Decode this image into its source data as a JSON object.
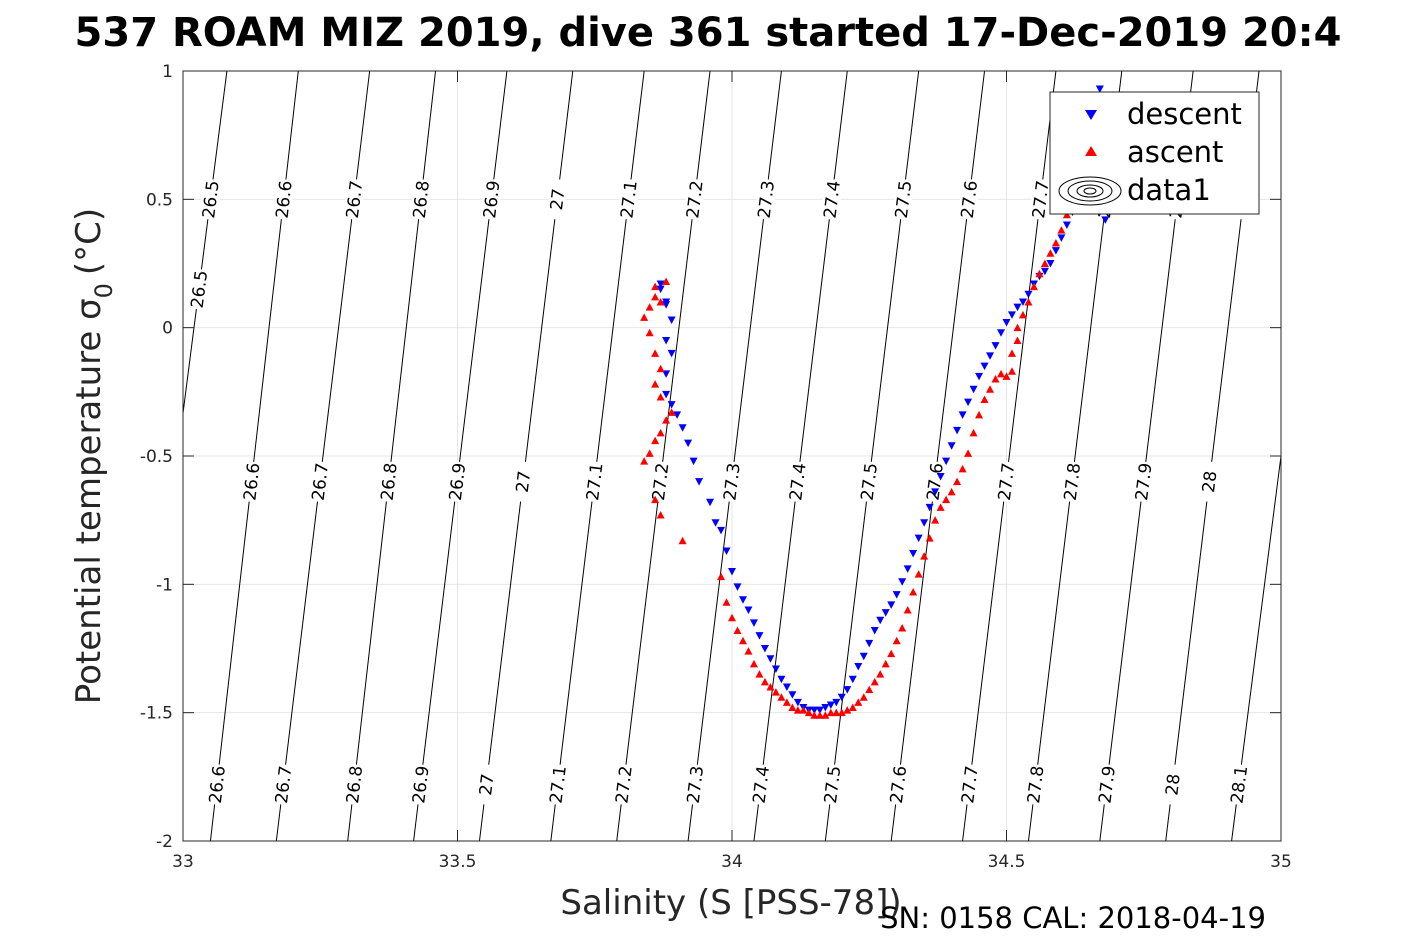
{
  "chart_data": {
    "type": "scatter",
    "title": "537 ROAM MIZ 2019, dive 361 started 17-Dec-2019 20:4",
    "xlabel": "Salinity (S [PSS-78])",
    "ylabel": "Potential temperature σ",
    "ylabel_sub": "0",
    "ylabel_unit": "(°C)",
    "caption": "SN: 0158  CAL: 2018-04-19",
    "xlim": [
      33,
      35
    ],
    "ylim": [
      -2,
      1
    ],
    "x_ticks": [
      33,
      33.5,
      34,
      34.5,
      35
    ],
    "x_tick_labels": [
      "33",
      "33.5",
      "34",
      "34.5",
      "35"
    ],
    "y_ticks": [
      1,
      0.5,
      0,
      -0.5,
      -1,
      -1.5,
      -2
    ],
    "y_tick_labels": [
      "1",
      "0.5",
      "0",
      "-0.5",
      "-1",
      "-1.5",
      "-2"
    ],
    "grid": true,
    "legend": {
      "placement": "top-right",
      "entries": [
        "descent",
        "ascent",
        "data1"
      ],
      "colors": [
        "#0000ff",
        "#ff0000",
        "#000000"
      ]
    },
    "contours": {
      "levels": [
        "26.5",
        "26.6",
        "26.7",
        "26.8",
        "26.9",
        "27",
        "27.1",
        "27.2",
        "27.3",
        "27.4",
        "27.5",
        "27.6",
        "27.7",
        "27.8",
        "27.9",
        "28",
        "28.1"
      ],
      "lines": [
        {
          "level": "26.5",
          "bottom_s": 32.9,
          "top_s": 33.08
        },
        {
          "level": "26.6",
          "bottom_s": 33.05,
          "top_s": 33.21
        },
        {
          "level": "26.7",
          "bottom_s": 33.17,
          "top_s": 33.34
        },
        {
          "level": "26.8",
          "bottom_s": 33.3,
          "top_s": 33.46
        },
        {
          "level": "26.9",
          "bottom_s": 33.42,
          "top_s": 33.59
        },
        {
          "level": "27",
          "bottom_s": 33.54,
          "top_s": 33.71
        },
        {
          "level": "27.1",
          "bottom_s": 33.67,
          "top_s": 33.84
        },
        {
          "level": "27.2",
          "bottom_s": 33.79,
          "top_s": 33.96
        },
        {
          "level": "27.3",
          "bottom_s": 33.92,
          "top_s": 34.09
        },
        {
          "level": "27.4",
          "bottom_s": 34.04,
          "top_s": 34.21
        },
        {
          "level": "27.5",
          "bottom_s": 34.17,
          "top_s": 34.34
        },
        {
          "level": "27.6",
          "bottom_s": 34.29,
          "top_s": 34.46
        },
        {
          "level": "27.7",
          "bottom_s": 34.42,
          "top_s": 34.59
        },
        {
          "level": "27.8",
          "bottom_s": 34.54,
          "top_s": 34.71
        },
        {
          "level": "27.9",
          "bottom_s": 34.67,
          "top_s": 34.84
        },
        {
          "level": "28",
          "bottom_s": 34.79,
          "top_s": 34.96
        },
        {
          "level": "28.1",
          "bottom_s": 34.91,
          "top_s": 35.09
        }
      ]
    },
    "series": [
      {
        "name": "descent",
        "color": "#0000ff",
        "marker": "triangle-down",
        "points": [
          [
            34.67,
            0.93
          ],
          [
            34.67,
            0.9
          ],
          [
            34.66,
            0.85
          ],
          [
            34.66,
            0.78
          ],
          [
            34.65,
            0.7
          ],
          [
            34.65,
            0.62
          ],
          [
            34.64,
            0.55
          ],
          [
            34.63,
            0.5
          ],
          [
            34.62,
            0.45
          ],
          [
            34.61,
            0.4
          ],
          [
            34.6,
            0.35
          ],
          [
            34.59,
            0.3
          ],
          [
            34.58,
            0.25
          ],
          [
            34.57,
            0.22
          ],
          [
            34.56,
            0.2
          ],
          [
            34.55,
            0.17
          ],
          [
            34.54,
            0.13
          ],
          [
            34.53,
            0.1
          ],
          [
            34.52,
            0.08
          ],
          [
            34.51,
            0.05
          ],
          [
            34.5,
            0.02
          ],
          [
            34.49,
            -0.02
          ],
          [
            34.48,
            -0.07
          ],
          [
            34.47,
            -0.11
          ],
          [
            34.46,
            -0.15
          ],
          [
            34.45,
            -0.19
          ],
          [
            34.44,
            -0.24
          ],
          [
            34.43,
            -0.29
          ],
          [
            34.42,
            -0.34
          ],
          [
            34.41,
            -0.4
          ],
          [
            34.4,
            -0.46
          ],
          [
            34.39,
            -0.52
          ],
          [
            34.38,
            -0.58
          ],
          [
            34.37,
            -0.64
          ],
          [
            34.36,
            -0.7
          ],
          [
            34.35,
            -0.76
          ],
          [
            34.34,
            -0.82
          ],
          [
            34.33,
            -0.88
          ],
          [
            34.32,
            -0.94
          ],
          [
            34.31,
            -0.99
          ],
          [
            34.3,
            -1.04
          ],
          [
            34.29,
            -1.08
          ],
          [
            34.28,
            -1.11
          ],
          [
            34.27,
            -1.14
          ],
          [
            34.26,
            -1.18
          ],
          [
            34.25,
            -1.23
          ],
          [
            34.24,
            -1.28
          ],
          [
            34.23,
            -1.32
          ],
          [
            34.22,
            -1.37
          ],
          [
            34.21,
            -1.41
          ],
          [
            34.2,
            -1.44
          ],
          [
            34.19,
            -1.46
          ],
          [
            34.18,
            -1.47
          ],
          [
            34.17,
            -1.48
          ],
          [
            34.16,
            -1.49
          ],
          [
            34.15,
            -1.49
          ],
          [
            34.14,
            -1.49
          ],
          [
            34.13,
            -1.48
          ],
          [
            34.12,
            -1.46
          ],
          [
            34.11,
            -1.43
          ],
          [
            34.1,
            -1.4
          ],
          [
            34.09,
            -1.37
          ],
          [
            34.08,
            -1.33
          ],
          [
            34.07,
            -1.29
          ],
          [
            34.06,
            -1.25
          ],
          [
            34.05,
            -1.2
          ],
          [
            34.04,
            -1.15
          ],
          [
            34.03,
            -1.1
          ],
          [
            34.02,
            -1.06
          ],
          [
            34.01,
            -1.01
          ],
          [
            34.0,
            -0.95
          ],
          [
            33.99,
            -0.87
          ],
          [
            33.98,
            -0.79
          ],
          [
            33.97,
            -0.76
          ],
          [
            33.96,
            -0.68
          ],
          [
            33.94,
            -0.6
          ],
          [
            33.93,
            -0.52
          ],
          [
            33.92,
            -0.45
          ],
          [
            33.91,
            -0.39
          ],
          [
            33.9,
            -0.34
          ],
          [
            33.89,
            -0.3
          ],
          [
            33.88,
            -0.26
          ],
          [
            33.88,
            -0.18
          ],
          [
            33.89,
            -0.1
          ],
          [
            33.88,
            -0.05
          ],
          [
            33.89,
            0.03
          ],
          [
            33.88,
            0.1
          ],
          [
            33.87,
            0.17
          ],
          [
            33.87,
            0.15
          ],
          [
            33.88,
            0.09
          ],
          [
            34.68,
            0.48
          ],
          [
            34.67,
            0.45
          ],
          [
            34.68,
            0.42
          ]
        ]
      },
      {
        "name": "ascent",
        "color": "#ff0000",
        "marker": "triangle-up",
        "points": [
          [
            34.65,
            0.7
          ],
          [
            34.64,
            0.62
          ],
          [
            34.63,
            0.56
          ],
          [
            34.62,
            0.5
          ],
          [
            34.61,
            0.44
          ],
          [
            34.6,
            0.38
          ],
          [
            34.59,
            0.33
          ],
          [
            34.58,
            0.29
          ],
          [
            34.57,
            0.25
          ],
          [
            34.56,
            0.21
          ],
          [
            34.55,
            0.16
          ],
          [
            34.54,
            0.1
          ],
          [
            34.53,
            0.05
          ],
          [
            34.52,
            0.0
          ],
          [
            34.52,
            -0.05
          ],
          [
            34.51,
            -0.1
          ],
          [
            34.51,
            -0.17
          ],
          [
            34.5,
            -0.19
          ],
          [
            34.49,
            -0.18
          ],
          [
            34.48,
            -0.2
          ],
          [
            34.47,
            -0.24
          ],
          [
            34.46,
            -0.28
          ],
          [
            34.45,
            -0.34
          ],
          [
            34.44,
            -0.41
          ],
          [
            34.43,
            -0.49
          ],
          [
            34.42,
            -0.55
          ],
          [
            34.41,
            -0.6
          ],
          [
            34.4,
            -0.64
          ],
          [
            34.39,
            -0.67
          ],
          [
            34.38,
            -0.7
          ],
          [
            34.37,
            -0.75
          ],
          [
            34.36,
            -0.82
          ],
          [
            34.35,
            -0.89
          ],
          [
            34.34,
            -0.96
          ],
          [
            34.33,
            -1.03
          ],
          [
            34.32,
            -1.1
          ],
          [
            34.31,
            -1.17
          ],
          [
            34.3,
            -1.22
          ],
          [
            34.29,
            -1.27
          ],
          [
            34.28,
            -1.31
          ],
          [
            34.27,
            -1.35
          ],
          [
            34.26,
            -1.38
          ],
          [
            34.25,
            -1.41
          ],
          [
            34.24,
            -1.44
          ],
          [
            34.23,
            -1.46
          ],
          [
            34.22,
            -1.48
          ],
          [
            34.21,
            -1.49
          ],
          [
            34.2,
            -1.5
          ],
          [
            34.19,
            -1.5
          ],
          [
            34.18,
            -1.5
          ],
          [
            34.17,
            -1.51
          ],
          [
            34.16,
            -1.51
          ],
          [
            34.15,
            -1.51
          ],
          [
            34.14,
            -1.5
          ],
          [
            34.13,
            -1.49
          ],
          [
            34.12,
            -1.49
          ],
          [
            34.11,
            -1.48
          ],
          [
            34.1,
            -1.46
          ],
          [
            34.09,
            -1.44
          ],
          [
            34.08,
            -1.42
          ],
          [
            34.07,
            -1.4
          ],
          [
            34.06,
            -1.38
          ],
          [
            34.05,
            -1.35
          ],
          [
            34.04,
            -1.31
          ],
          [
            34.03,
            -1.26
          ],
          [
            34.02,
            -1.22
          ],
          [
            34.01,
            -1.18
          ],
          [
            34.0,
            -1.13
          ],
          [
            33.99,
            -1.07
          ],
          [
            33.98,
            -0.97
          ],
          [
            33.91,
            -0.83
          ],
          [
            33.87,
            -0.73
          ],
          [
            33.86,
            -0.67
          ],
          [
            33.84,
            -0.52
          ],
          [
            33.85,
            -0.49
          ],
          [
            33.86,
            -0.44
          ],
          [
            33.87,
            -0.41
          ],
          [
            33.88,
            -0.36
          ],
          [
            33.89,
            -0.33
          ],
          [
            33.87,
            -0.27
          ],
          [
            33.86,
            -0.22
          ],
          [
            33.87,
            -0.16
          ],
          [
            33.86,
            -0.1
          ],
          [
            33.85,
            -0.02
          ],
          [
            33.84,
            0.04
          ],
          [
            33.85,
            0.08
          ],
          [
            33.86,
            0.12
          ],
          [
            33.86,
            0.16
          ],
          [
            33.88,
            0.18
          ],
          [
            33.87,
            0.1
          ]
        ]
      }
    ]
  }
}
